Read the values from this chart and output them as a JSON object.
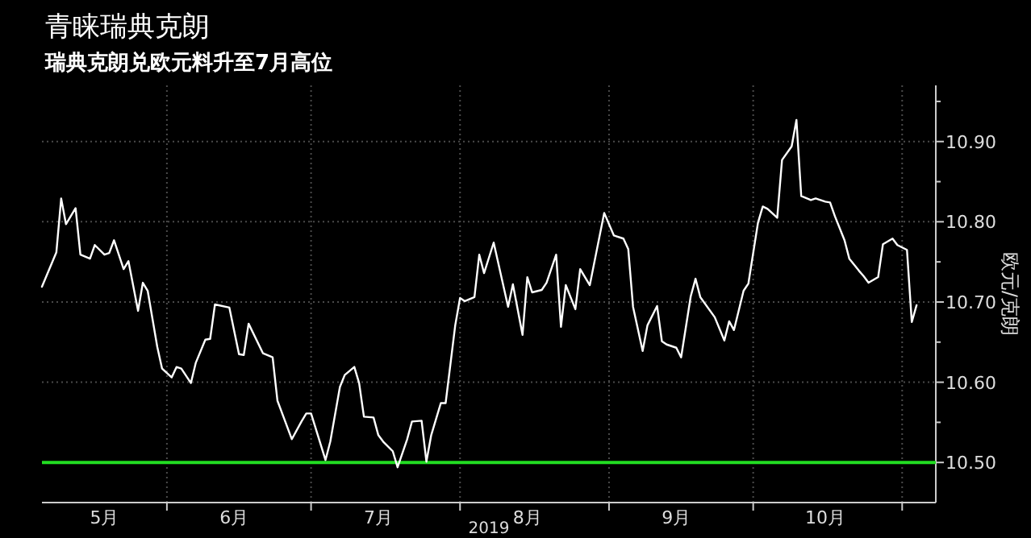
{
  "chart_data": {
    "type": "line",
    "title": "青睐瑞典克朗",
    "subtitle": "瑞典克朗兑欧元料升至7月高位",
    "ylabel": "欧元/克朗",
    "annotations": [
      "2019"
    ],
    "x": [
      "2019-05-06",
      "2019-05-09",
      "2019-05-10",
      "2019-05-11",
      "2019-05-13",
      "2019-05-14",
      "2019-05-16",
      "2019-05-17",
      "2019-05-19",
      "2019-05-20",
      "2019-05-21",
      "2019-05-23",
      "2019-05-24",
      "2019-05-26",
      "2019-05-27",
      "2019-05-28",
      "2019-05-30",
      "2019-05-31",
      "2019-06-02",
      "2019-06-03",
      "2019-06-04",
      "2019-06-06",
      "2019-06-07",
      "2019-06-09",
      "2019-06-10",
      "2019-06-11",
      "2019-06-14",
      "2019-06-16",
      "2019-06-17",
      "2019-06-18",
      "2019-06-21",
      "2019-06-23",
      "2019-06-24",
      "2019-06-27",
      "2019-06-29",
      "2019-06-30",
      "2019-07-01",
      "2019-07-04",
      "2019-07-05",
      "2019-07-07",
      "2019-07-08",
      "2019-07-10",
      "2019-07-11",
      "2019-07-12",
      "2019-07-14",
      "2019-07-15",
      "2019-07-16",
      "2019-07-18",
      "2019-07-19",
      "2019-07-21",
      "2019-07-22",
      "2019-07-24",
      "2019-07-25",
      "2019-07-26",
      "2019-07-28",
      "2019-07-29",
      "2019-07-31",
      "2019-08-01",
      "2019-08-02",
      "2019-08-04",
      "2019-08-05",
      "2019-08-06",
      "2019-08-08",
      "2019-08-11",
      "2019-08-12",
      "2019-08-14",
      "2019-08-15",
      "2019-08-16",
      "2019-08-18",
      "2019-08-19",
      "2019-08-21",
      "2019-08-22",
      "2019-08-23",
      "2019-08-25",
      "2019-08-26",
      "2019-08-28",
      "2019-08-31",
      "2019-09-02",
      "2019-09-04",
      "2019-09-05",
      "2019-09-06",
      "2019-09-08",
      "2019-09-09",
      "2019-09-11",
      "2019-09-12",
      "2019-09-13",
      "2019-09-15",
      "2019-09-16",
      "2019-09-18",
      "2019-09-19",
      "2019-09-20",
      "2019-09-23",
      "2019-09-25",
      "2019-09-26",
      "2019-09-27",
      "2019-09-29",
      "2019-09-30",
      "2019-10-02",
      "2019-10-03",
      "2019-10-04",
      "2019-10-06",
      "2019-10-07",
      "2019-10-09",
      "2019-10-10",
      "2019-10-11",
      "2019-10-13",
      "2019-10-14",
      "2019-10-16",
      "2019-10-17",
      "2019-10-18",
      "2019-10-20",
      "2019-10-21",
      "2019-10-23",
      "2019-10-24",
      "2019-10-25",
      "2019-10-27",
      "2019-10-28",
      "2019-10-30",
      "2019-10-31",
      "2019-11-02",
      "2019-11-03",
      "2019-11-04"
    ],
    "series": [
      {
        "color": "#ffffff",
        "values": [
          10.719,
          10.762,
          10.829,
          10.797,
          10.817,
          10.759,
          10.754,
          10.771,
          10.759,
          10.761,
          10.777,
          10.741,
          10.751,
          10.689,
          10.724,
          10.714,
          10.644,
          10.617,
          10.606,
          10.619,
          10.617,
          10.599,
          10.624,
          10.653,
          10.654,
          10.697,
          10.693,
          10.635,
          10.634,
          10.673,
          10.636,
          10.631,
          10.577,
          10.529,
          10.551,
          10.561,
          10.561,
          10.503,
          10.526,
          10.594,
          10.609,
          10.619,
          10.599,
          10.557,
          10.556,
          10.534,
          10.526,
          10.514,
          10.494,
          10.529,
          10.551,
          10.552,
          10.501,
          10.534,
          10.574,
          10.574,
          10.671,
          10.705,
          10.701,
          10.706,
          10.759,
          10.736,
          10.774,
          10.694,
          10.722,
          10.659,
          10.731,
          10.712,
          10.715,
          10.724,
          10.759,
          10.669,
          10.721,
          10.691,
          10.741,
          10.721,
          10.811,
          10.783,
          10.779,
          10.766,
          10.694,
          10.639,
          10.671,
          10.695,
          10.651,
          10.647,
          10.643,
          10.631,
          10.707,
          10.729,
          10.706,
          10.681,
          10.652,
          10.676,
          10.665,
          10.714,
          10.723,
          10.799,
          10.819,
          10.816,
          10.805,
          10.877,
          10.894,
          10.927,
          10.832,
          10.827,
          10.829,
          10.825,
          10.824,
          10.807,
          10.777,
          10.754,
          10.739,
          10.732,
          10.724,
          10.731,
          10.772,
          10.779,
          10.771,
          10.765,
          10.675,
          10.696
        ]
      }
    ],
    "xlim": [
      "2019-05-06",
      "2019-11-08"
    ],
    "xticks": [
      {
        "value": "2019-05-19",
        "label": "5月"
      },
      {
        "value": "2019-06-01",
        "label": null
      },
      {
        "value": "2019-06-15",
        "label": "6月"
      },
      {
        "value": "2019-07-01",
        "label": null
      },
      {
        "value": "2019-07-15",
        "label": "7月"
      },
      {
        "value": "2019-08-01",
        "label": null
      },
      {
        "value": "2019-08-15",
        "label": "8月"
      },
      {
        "value": "2019-09-01",
        "label": null
      },
      {
        "value": "2019-09-15",
        "label": "9月"
      },
      {
        "value": "2019-10-01",
        "label": null
      },
      {
        "value": "2019-10-16",
        "label": "10月"
      },
      {
        "value": "2019-11-01",
        "label": null
      }
    ],
    "ylim": [
      10.45,
      10.97
    ],
    "yticks": [
      {
        "value": 10.5,
        "label": "10.50"
      },
      {
        "value": 10.55,
        "label": null
      },
      {
        "value": 10.6,
        "label": "10.60"
      },
      {
        "value": 10.65,
        "label": null
      },
      {
        "value": 10.7,
        "label": "10.70"
      },
      {
        "value": 10.75,
        "label": null
      },
      {
        "value": 10.8,
        "label": "10.80"
      },
      {
        "value": 10.85,
        "label": null
      },
      {
        "value": 10.9,
        "label": "10.90"
      },
      {
        "value": 10.95,
        "label": null
      }
    ],
    "ref_lines": [
      {
        "axis": "y",
        "value": 10.5,
        "color": "#22dd22"
      }
    ],
    "grid": true,
    "marker": "none",
    "line_style": "solid"
  }
}
